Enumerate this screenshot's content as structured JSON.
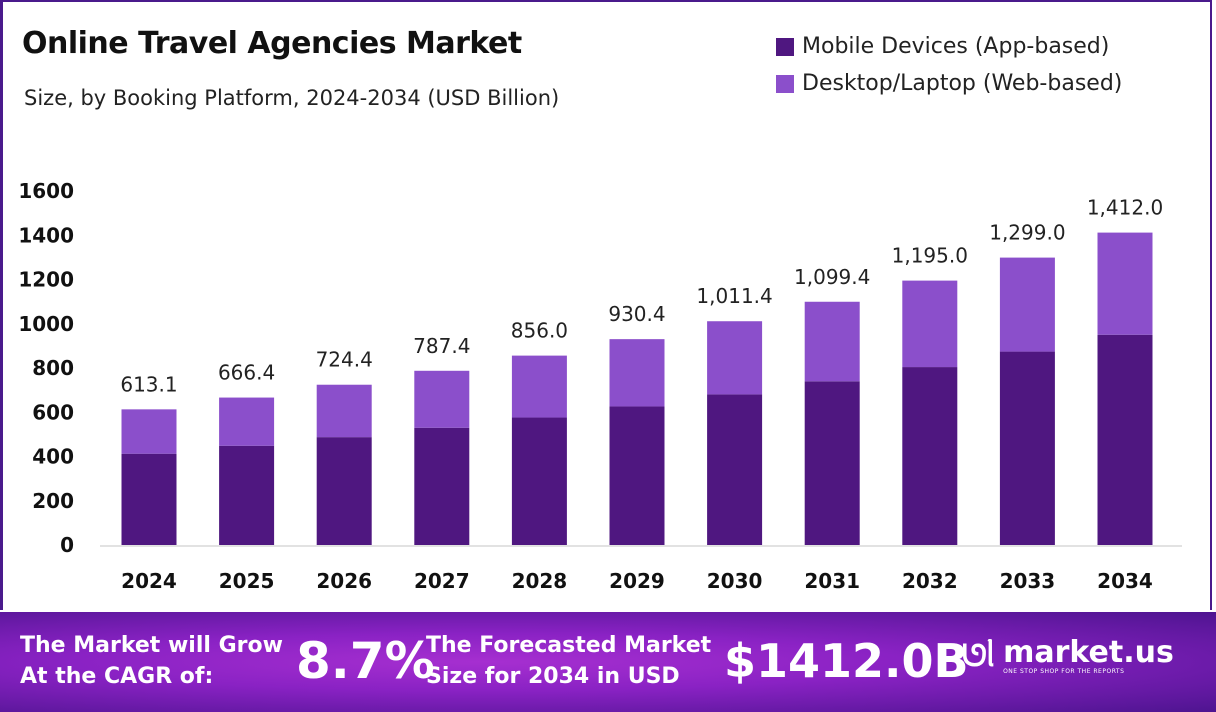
{
  "chart_data": {
    "type": "bar",
    "stacked": true,
    "title": "Online Travel Agencies Market",
    "subtitle": "Size, by Booking Platform, 2024-2034 (USD Billion)",
    "categories": [
      "2024",
      "2025",
      "2026",
      "2027",
      "2028",
      "2029",
      "2030",
      "2031",
      "2032",
      "2033",
      "2034"
    ],
    "series": [
      {
        "name": "Mobile Devices (App-based)",
        "color": "#4f1780",
        "values": [
          412.6,
          448.5,
          487.5,
          529.9,
          576.1,
          626.2,
          680.7,
          739.9,
          804.2,
          874.2,
          950.3
        ]
      },
      {
        "name": "Desktop/Laptop (Web-based)",
        "color": "#8b4fcb",
        "values": [
          200.5,
          217.9,
          236.9,
          257.5,
          279.9,
          304.2,
          330.7,
          359.5,
          390.8,
          424.8,
          461.7
        ]
      }
    ],
    "totals": [
      "613.1",
      "666.4",
      "724.4",
      "787.4",
      "856.0",
      "930.4",
      "1,011.4",
      "1,099.4",
      "1,195.0",
      "1,299.0",
      "1,412.0"
    ],
    "yticks": [
      "0",
      "200",
      "400",
      "600",
      "800",
      "1000",
      "1200",
      "1400",
      "1600"
    ],
    "ylim": [
      0,
      1600
    ],
    "grid": false,
    "legend": "top-right"
  },
  "footer": {
    "cagr_text_1": "The Market will Grow",
    "cagr_text_2": "At the CAGR of:",
    "cagr_value": "8.7%",
    "forecast_text_1": "The Forecasted Market",
    "forecast_text_2": "Size for 2034 in USD",
    "forecast_value": "$1412.0B",
    "brand": "market.us",
    "tagline": "ONE STOP SHOP FOR THE REPORTS"
  }
}
